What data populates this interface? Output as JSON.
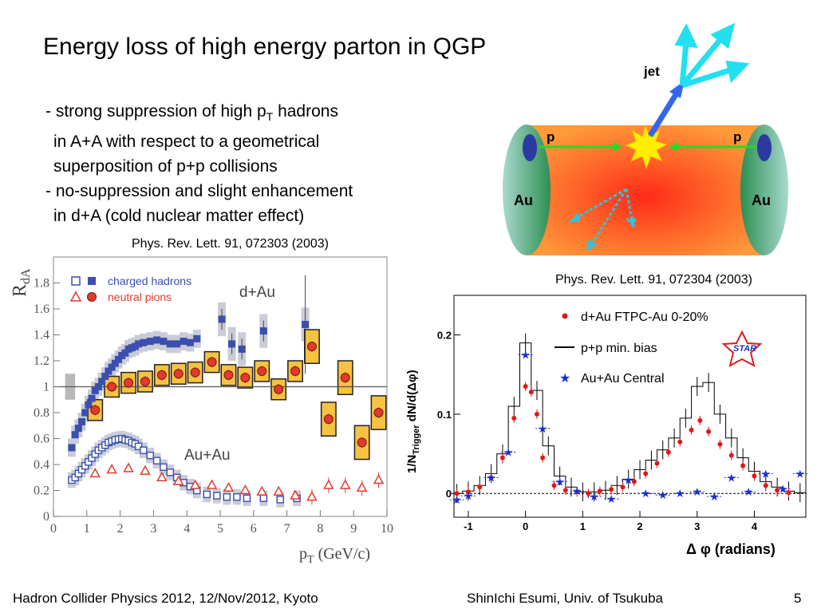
{
  "slide": {
    "title": "Energy loss of high energy parton in QGP",
    "bullets": [
      {
        "lead": "- strong suppression of high p",
        "sub": "T",
        "tail": " hadrons"
      },
      {
        "text": "in A+A with respect to a geometrical"
      },
      {
        "text": "superposition of p+p collisions"
      },
      {
        "text": "- no-suppression and slight enhancement"
      },
      {
        "text": "in d+A (cold nuclear matter effect)"
      }
    ],
    "ref_left": "Phys. Rev. Lett. 91, 072303 (2003)",
    "ref_right": "Phys. Rev. Lett. 91, 072304 (2003)",
    "footer_left": "Hadron Collider Physics 2012, 12/Nov/2012, Kyoto",
    "footer_center": "ShinIchi Esumi, Univ. of Tsukuba",
    "page_number": "5"
  },
  "diagram": {
    "jet_label": "jet",
    "p_left": "p",
    "p_right": "p",
    "au_left": "Au",
    "au_right": "Au"
  },
  "chart_data": [
    {
      "type": "scatter",
      "ylabel_main": "R",
      "ylabel_sub": "dA",
      "xlabel_main": "p",
      "xlabel_sub": "T",
      "xlabel_unit": " (GeV/c)",
      "xlim": [
        0,
        10
      ],
      "ylim": [
        0,
        2
      ],
      "x_ticks": [
        "0",
        "1",
        "2",
        "3",
        "4",
        "5",
        "6",
        "7",
        "8",
        "9",
        "10"
      ],
      "y_ticks": [
        "0",
        "0.2",
        "0.4",
        "0.6",
        "0.8",
        "1",
        "1.2",
        "1.4",
        "1.6",
        "1.8"
      ],
      "reference_line": 1,
      "legend": [
        "charged hadrons",
        "neutral pions"
      ],
      "annotations": [
        "d+Au",
        "Au+Au"
      ],
      "colors": {
        "charged": "#3a4fae",
        "pion": "#e23a2e",
        "band": "#c9ccd6",
        "box": "#f5c242"
      },
      "series": [
        {
          "name": "charged hadrons",
          "system": "d+Au",
          "x": [
            0.55,
            0.65,
            0.75,
            0.85,
            0.95,
            1.05,
            1.15,
            1.25,
            1.35,
            1.45,
            1.55,
            1.65,
            1.75,
            1.85,
            1.95,
            2.05,
            2.15,
            2.25,
            2.35,
            2.45,
            2.55,
            2.7,
            2.9,
            3.1,
            3.3,
            3.5,
            3.7,
            3.9,
            4.1,
            4.3,
            5.05,
            5.35,
            5.65,
            6.3,
            7.55
          ],
          "y": [
            0.53,
            0.63,
            0.68,
            0.73,
            0.8,
            0.86,
            0.91,
            0.97,
            1.0,
            1.04,
            1.08,
            1.12,
            1.15,
            1.18,
            1.21,
            1.24,
            1.26,
            1.29,
            1.3,
            1.31,
            1.33,
            1.34,
            1.35,
            1.36,
            1.35,
            1.33,
            1.33,
            1.35,
            1.34,
            1.37,
            1.52,
            1.33,
            1.29,
            1.43,
            1.48
          ]
        },
        {
          "name": "neutral pions",
          "system": "d+Au",
          "x": [
            1.25,
            1.75,
            2.25,
            2.75,
            3.25,
            3.75,
            4.25,
            4.75,
            5.25,
            5.75,
            6.25,
            6.75,
            7.25,
            7.75,
            8.25,
            8.75,
            9.25,
            9.75
          ],
          "y": [
            0.82,
            1.0,
            1.03,
            1.04,
            1.09,
            1.1,
            1.11,
            1.19,
            1.09,
            1.07,
            1.12,
            0.98,
            1.12,
            1.31,
            0.75,
            1.07,
            0.57,
            0.8
          ]
        },
        {
          "name": "charged hadrons",
          "system": "Au+Au",
          "x": [
            0.55,
            0.65,
            0.75,
            0.85,
            0.95,
            1.05,
            1.15,
            1.25,
            1.35,
            1.45,
            1.55,
            1.65,
            1.75,
            1.85,
            1.95,
            2.05,
            2.15,
            2.25,
            2.35,
            2.45,
            2.55,
            2.7,
            2.9,
            3.1,
            3.3,
            3.5,
            3.7,
            3.9,
            4.1,
            4.3,
            4.6,
            4.9,
            5.2,
            5.5,
            5.8,
            6.3,
            6.8,
            7.3
          ],
          "y": [
            0.28,
            0.3,
            0.33,
            0.36,
            0.39,
            0.42,
            0.45,
            0.48,
            0.51,
            0.53,
            0.55,
            0.57,
            0.58,
            0.59,
            0.595,
            0.6,
            0.59,
            0.585,
            0.57,
            0.56,
            0.54,
            0.51,
            0.47,
            0.43,
            0.38,
            0.34,
            0.3,
            0.26,
            0.23,
            0.2,
            0.17,
            0.16,
            0.15,
            0.15,
            0.14,
            0.14,
            0.13,
            0.14
          ]
        },
        {
          "name": "neutral pions",
          "system": "Au+Au",
          "x": [
            1.25,
            1.75,
            2.25,
            2.75,
            3.25,
            3.75,
            4.25,
            4.75,
            5.25,
            5.75,
            6.25,
            6.75,
            7.25,
            7.75,
            8.25,
            8.75,
            9.25,
            9.75
          ],
          "y": [
            0.33,
            0.36,
            0.37,
            0.35,
            0.3,
            0.27,
            0.24,
            0.24,
            0.22,
            0.2,
            0.19,
            0.19,
            0.16,
            0.15,
            0.24,
            0.24,
            0.22,
            0.28
          ]
        }
      ]
    },
    {
      "type": "scatter",
      "ylabel_a": "1/N",
      "ylabel_sub": "Trigger",
      "ylabel_b": " dN/d(Δφ)",
      "xlabel": "Δ φ (radians)",
      "xlim": [
        -1.25,
        4.9
      ],
      "ylim": [
        -0.03,
        0.25
      ],
      "x_ticks": [
        "-1",
        "0",
        "1",
        "2",
        "3",
        "4"
      ],
      "y_ticks": [
        "0",
        "0.1",
        "0.2"
      ],
      "legend": [
        "d+Au FTPC-Au 0-20%",
        "p+p min. bias",
        "Au+Au Central"
      ],
      "logo": "STAR",
      "colors": {
        "dau": "#e01818",
        "pp": "#000000",
        "auau": "#1a2fd0"
      },
      "series": [
        {
          "name": "d+Au FTPC-Au 0-20%",
          "x": [
            -1.2,
            -1.0,
            -0.8,
            -0.6,
            -0.4,
            -0.2,
            0.0,
            0.1,
            0.2,
            0.3,
            0.5,
            0.7,
            0.9,
            1.1,
            1.3,
            1.5,
            1.7,
            1.9,
            2.1,
            2.3,
            2.5,
            2.7,
            2.9,
            3.05,
            3.2,
            3.4,
            3.6,
            3.8,
            4.0,
            4.2,
            4.4,
            4.6
          ],
          "y": [
            0.0,
            0.002,
            0.008,
            0.02,
            0.045,
            0.095,
            0.135,
            0.128,
            0.1,
            0.045,
            0.01,
            0.004,
            0.002,
            0.0,
            0.003,
            0.005,
            0.008,
            0.015,
            0.025,
            0.038,
            0.052,
            0.065,
            0.08,
            0.092,
            0.078,
            0.062,
            0.048,
            0.035,
            0.022,
            0.01,
            0.004,
            0.001
          ]
        },
        {
          "name": "p+p min. bias",
          "x": [
            -1.2,
            -1.0,
            -0.8,
            -0.6,
            -0.4,
            -0.2,
            0.0,
            0.2,
            0.4,
            0.6,
            0.8,
            1.0,
            1.2,
            1.4,
            1.6,
            1.8,
            2.0,
            2.2,
            2.4,
            2.6,
            2.8,
            3.0,
            3.2,
            3.4,
            3.6,
            3.8,
            4.0,
            4.2,
            4.4,
            4.6,
            4.8
          ],
          "y": [
            0.0,
            0.003,
            0.01,
            0.025,
            0.05,
            0.11,
            0.19,
            0.13,
            0.06,
            0.022,
            0.008,
            0.002,
            0.002,
            0.004,
            0.01,
            0.018,
            0.03,
            0.042,
            0.055,
            0.07,
            0.095,
            0.135,
            0.14,
            0.1,
            0.07,
            0.045,
            0.028,
            0.015,
            0.008,
            0.003,
            0.001
          ]
        },
        {
          "name": "Au+Au Central",
          "x": [
            -1.2,
            -1.0,
            -0.6,
            -0.3,
            0.0,
            0.3,
            0.6,
            0.9,
            1.2,
            1.5,
            1.8,
            2.1,
            2.4,
            2.7,
            3.0,
            3.3,
            3.6,
            3.9,
            4.2,
            4.5,
            4.8
          ],
          "y": [
            -0.008,
            -0.003,
            0.02,
            0.052,
            0.175,
            0.082,
            0.015,
            0.003,
            -0.004,
            -0.007,
            0.017,
            0.0,
            -0.002,
            0.0,
            0.002,
            -0.004,
            0.02,
            0.002,
            0.025,
            0.006,
            0.025
          ]
        }
      ]
    }
  ]
}
